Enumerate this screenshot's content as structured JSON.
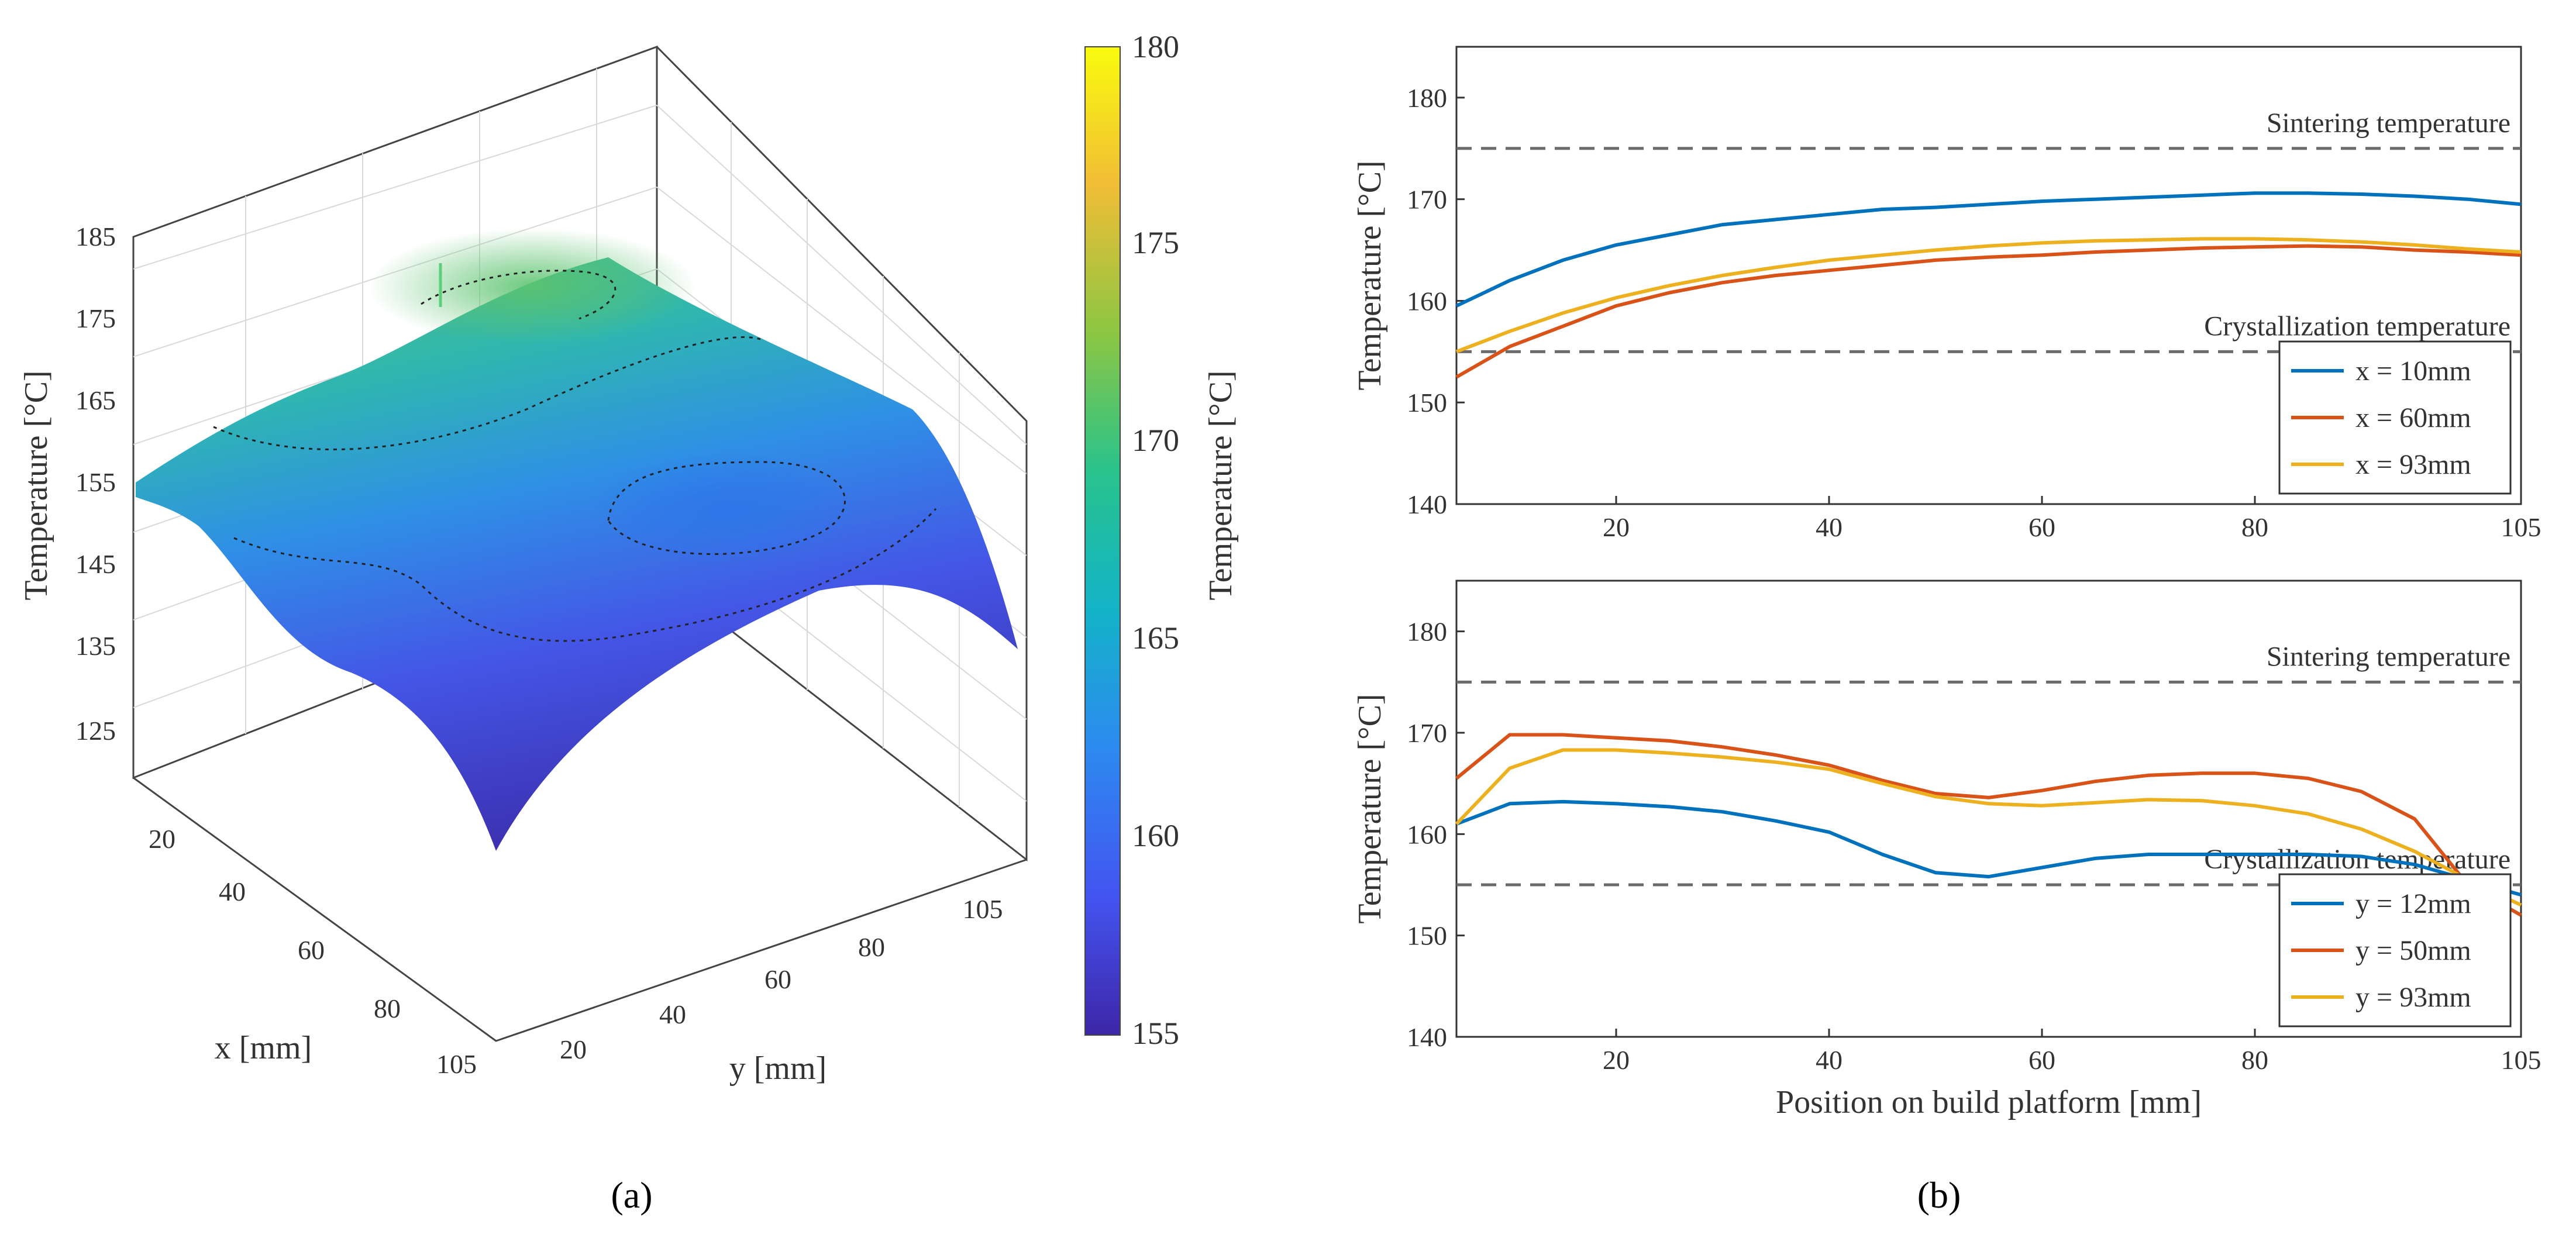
{
  "panels": {
    "a": "(a)",
    "b": "(b)"
  },
  "surface_plot": {
    "type": "surface3d",
    "xlabel": "x [mm]",
    "ylabel": "y [mm]",
    "zlabel": "Temperature [°C]",
    "x_ticks": [
      "20",
      "40",
      "60",
      "80",
      "105"
    ],
    "y_ticks": [
      "20",
      "40",
      "60",
      "80",
      "105"
    ],
    "z_ticks": [
      "125",
      "135",
      "145",
      "155",
      "165",
      "175",
      "185"
    ],
    "colorbar": {
      "label": "Temperature [°C]",
      "range": [
        155,
        180
      ],
      "ticks": [
        "155",
        "160",
        "165",
        "170",
        "175",
        "180"
      ],
      "colors": [
        "#3e26a8",
        "#4354f0",
        "#2d8af0",
        "#13b3c8",
        "#28c38c",
        "#8cc643",
        "#f1bd36",
        "#f9fb0e"
      ]
    }
  },
  "chart_data": [
    {
      "type": "line",
      "xlabel": "",
      "ylabel": "Temperature [°C]",
      "xlim": [
        5,
        105
      ],
      "ylim": [
        140,
        185
      ],
      "x_ticks": [
        "20",
        "40",
        "60",
        "80",
        "105"
      ],
      "y_ticks": [
        "140",
        "150",
        "160",
        "170",
        "180"
      ],
      "reference_lines": [
        {
          "label": "Sintering temperature",
          "y": 175
        },
        {
          "label": "Crystallization temperature",
          "y": 155
        }
      ],
      "legend_position": "bottom-right",
      "x": [
        5,
        10,
        15,
        20,
        25,
        30,
        35,
        40,
        45,
        50,
        55,
        60,
        65,
        70,
        75,
        80,
        85,
        90,
        95,
        100,
        105
      ],
      "series": [
        {
          "name": "x = 10mm",
          "color": "#0072bd",
          "values": [
            159.5,
            162,
            164,
            165.5,
            166.5,
            167.5,
            168,
            168.5,
            169,
            169.2,
            169.5,
            169.8,
            170,
            170.2,
            170.4,
            170.6,
            170.6,
            170.5,
            170.3,
            170,
            169.5
          ]
        },
        {
          "name": "x = 60mm",
          "color": "#d95319",
          "values": [
            152.5,
            155.5,
            157.5,
            159.5,
            160.8,
            161.8,
            162.5,
            163,
            163.5,
            164,
            164.3,
            164.5,
            164.8,
            165,
            165.2,
            165.3,
            165.4,
            165.3,
            165,
            164.8,
            164.5
          ]
        },
        {
          "name": "x = 93mm",
          "color": "#edb120",
          "values": [
            155,
            157,
            158.8,
            160.3,
            161.5,
            162.5,
            163.3,
            164,
            164.5,
            165,
            165.4,
            165.7,
            165.9,
            166,
            166.1,
            166.1,
            166,
            165.8,
            165.5,
            165.1,
            164.8
          ]
        }
      ]
    },
    {
      "type": "line",
      "xlabel": "Position on build platform [mm]",
      "ylabel": "Temperature [°C]",
      "xlim": [
        5,
        105
      ],
      "ylim": [
        140,
        185
      ],
      "x_ticks": [
        "20",
        "40",
        "60",
        "80",
        "105"
      ],
      "y_ticks": [
        "140",
        "150",
        "160",
        "170",
        "180"
      ],
      "reference_lines": [
        {
          "label": "Sintering temperature",
          "y": 175
        },
        {
          "label": "Crystallization temperature",
          "y": 155
        }
      ],
      "legend_position": "bottom-right",
      "x": [
        5,
        10,
        15,
        20,
        25,
        30,
        35,
        40,
        45,
        50,
        55,
        60,
        65,
        70,
        75,
        80,
        85,
        90,
        95,
        100,
        105
      ],
      "series": [
        {
          "name": "y = 12mm",
          "color": "#0072bd",
          "values": [
            161,
            163,
            163.2,
            163,
            162.7,
            162.2,
            161.3,
            160.2,
            158,
            156.2,
            155.8,
            156.7,
            157.6,
            158,
            158,
            158,
            158,
            157.8,
            157,
            155.5,
            154
          ]
        },
        {
          "name": "y = 50mm",
          "color": "#d95319",
          "values": [
            165.5,
            169.8,
            169.8,
            169.5,
            169.2,
            168.6,
            167.8,
            166.8,
            165.3,
            164,
            163.6,
            164.3,
            165.2,
            165.8,
            166,
            166,
            165.5,
            164.2,
            161.5,
            155,
            152
          ]
        },
        {
          "name": "y = 93mm",
          "color": "#edb120",
          "values": [
            161,
            166.5,
            168.3,
            168.3,
            168,
            167.6,
            167.1,
            166.4,
            165,
            163.7,
            163,
            162.8,
            163.1,
            163.4,
            163.3,
            162.8,
            162,
            160.5,
            158.3,
            155.5,
            153
          ]
        }
      ]
    }
  ]
}
